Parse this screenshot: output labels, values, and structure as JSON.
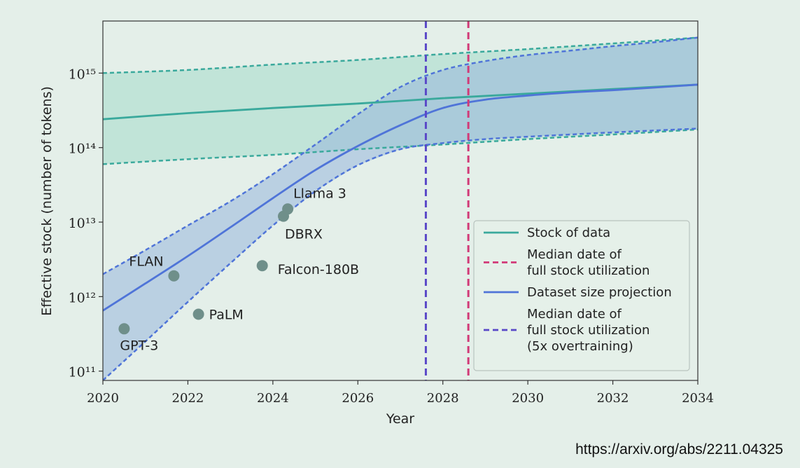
{
  "source_url": "https://arxiv.org/abs/2211.04325",
  "chart_data": {
    "type": "line",
    "title": "",
    "xlabel": "Year",
    "ylabel": "Effective stock (number of tokens)",
    "x_range": [
      2020,
      2034
    ],
    "y_range": [
      75000000000.0,
      5000000000000000.0
    ],
    "y_scale": "log",
    "x_ticks": [
      2020,
      2022,
      2024,
      2026,
      2028,
      2030,
      2032,
      2034
    ],
    "y_ticks": [
      {
        "value": 100000000000.0,
        "label": "10¹¹"
      },
      {
        "value": 1000000000000.0,
        "label": "10¹²"
      },
      {
        "value": 10000000000000.0,
        "label": "10¹³"
      },
      {
        "value": 100000000000000.0,
        "label": "10¹⁴"
      },
      {
        "value": 1000000000000000.0,
        "label": "10¹⁵"
      }
    ],
    "grid": false,
    "legend_position": "bottom-right",
    "colors": {
      "stock": "#3aa99c",
      "stock_band": "#b5e0d2",
      "projection": "#4f74d8",
      "projection_band": "#97b6dc",
      "median_date": "#d23a78",
      "median_date_overtrain": "#5a48c8",
      "points": "#6f8f8a"
    },
    "series": [
      {
        "name": "Stock of data",
        "style": "solid",
        "points": [
          [
            2020,
            240000000000000.0
          ],
          [
            2022,
            290000000000000.0
          ],
          [
            2024,
            340000000000000.0
          ],
          [
            2026,
            390000000000000.0
          ],
          [
            2028,
            460000000000000.0
          ],
          [
            2030,
            530000000000000.0
          ],
          [
            2032,
            610000000000000.0
          ],
          [
            2034,
            700000000000000.0
          ]
        ],
        "upper": [
          [
            2020,
            1000000000000000.0
          ],
          [
            2022,
            1100000000000000.0
          ],
          [
            2024,
            1300000000000000.0
          ],
          [
            2026,
            1500000000000000.0
          ],
          [
            2028,
            1800000000000000.0
          ],
          [
            2030,
            2100000000000000.0
          ],
          [
            2032,
            2500000000000000.0
          ],
          [
            2034,
            3000000000000000.0
          ]
        ],
        "lower": [
          [
            2020,
            60000000000000.0
          ],
          [
            2022,
            70000000000000.0
          ],
          [
            2024,
            80000000000000.0
          ],
          [
            2026,
            95000000000000.0
          ],
          [
            2028,
            110000000000000.0
          ],
          [
            2030,
            130000000000000.0
          ],
          [
            2032,
            150000000000000.0
          ],
          [
            2034,
            175000000000000.0
          ]
        ]
      },
      {
        "name": "Dataset size projection",
        "style": "solid",
        "points": [
          [
            2020,
            650000000000.0
          ],
          [
            2021,
            1500000000000.0
          ],
          [
            2022,
            3500000000000.0
          ],
          [
            2023,
            8500000000000.0
          ],
          [
            2024,
            21000000000000.0
          ],
          [
            2025,
            50000000000000.0
          ],
          [
            2026,
            105000000000000.0
          ],
          [
            2027,
            200000000000000.0
          ],
          [
            2028,
            340000000000000.0
          ],
          [
            2029,
            440000000000000.0
          ],
          [
            2030,
            500000000000000.0
          ],
          [
            2031,
            550000000000000.0
          ],
          [
            2032,
            590000000000000.0
          ],
          [
            2033,
            640000000000000.0
          ],
          [
            2034,
            700000000000000.0
          ]
        ],
        "upper": [
          [
            2020,
            2000000000000.0
          ],
          [
            2021,
            4200000000000.0
          ],
          [
            2022,
            9000000000000.0
          ],
          [
            2023,
            19000000000000.0
          ],
          [
            2024,
            44000000000000.0
          ],
          [
            2025,
            110000000000000.0
          ],
          [
            2026,
            280000000000000.0
          ],
          [
            2027,
            650000000000000.0
          ],
          [
            2028,
            1100000000000000.0
          ],
          [
            2029,
            1450000000000000.0
          ],
          [
            2030,
            1750000000000000.0
          ],
          [
            2031,
            2000000000000000.0
          ],
          [
            2032,
            2300000000000000.0
          ],
          [
            2033,
            2600000000000000.0
          ],
          [
            2034,
            3000000000000000.0
          ]
        ],
        "lower": [
          [
            2020,
            75000000000.0
          ],
          [
            2021,
            250000000000.0
          ],
          [
            2022,
            850000000000.0
          ],
          [
            2023,
            2800000000000.0
          ],
          [
            2024,
            9000000000000.0
          ],
          [
            2025,
            26000000000000.0
          ],
          [
            2026,
            58000000000000.0
          ],
          [
            2027,
            95000000000000.0
          ],
          [
            2028,
            115000000000000.0
          ],
          [
            2029,
            130000000000000.0
          ],
          [
            2030,
            140000000000000.0
          ],
          [
            2031,
            150000000000000.0
          ],
          [
            2032,
            160000000000000.0
          ],
          [
            2033,
            170000000000000.0
          ],
          [
            2034,
            180000000000000.0
          ]
        ]
      }
    ],
    "vertical_lines": [
      {
        "name": "Median date of full stock utilization",
        "x": 2028.6,
        "style": "dashed"
      },
      {
        "name": "Median date of full stock utilization (5x overtraining)",
        "x": 2027.6,
        "style": "dashed"
      }
    ],
    "points": [
      {
        "label": "GPT-3",
        "x": 2020.5,
        "y": 370000000000.0
      },
      {
        "label": "FLAN",
        "x": 2021.67,
        "y": 1900000000000.0
      },
      {
        "label": "PaLM",
        "x": 2022.25,
        "y": 580000000000.0
      },
      {
        "label": "Falcon-180B",
        "x": 2023.75,
        "y": 2600000000000.0
      },
      {
        "label": "DBRX",
        "x": 2024.25,
        "y": 12000000000000.0
      },
      {
        "label": "Llama 3",
        "x": 2024.35,
        "y": 15000000000000.0
      }
    ],
    "legend": [
      {
        "key": "stock",
        "lines": [
          "Stock of data"
        ]
      },
      {
        "key": "median_date",
        "lines": [
          "Median date of",
          "full stock utilization"
        ]
      },
      {
        "key": "projection",
        "lines": [
          "Dataset size projection"
        ]
      },
      {
        "key": "median_date_overtrain",
        "lines": [
          "Median date of",
          "full stock utilization",
          "(5x overtraining)"
        ]
      }
    ]
  }
}
